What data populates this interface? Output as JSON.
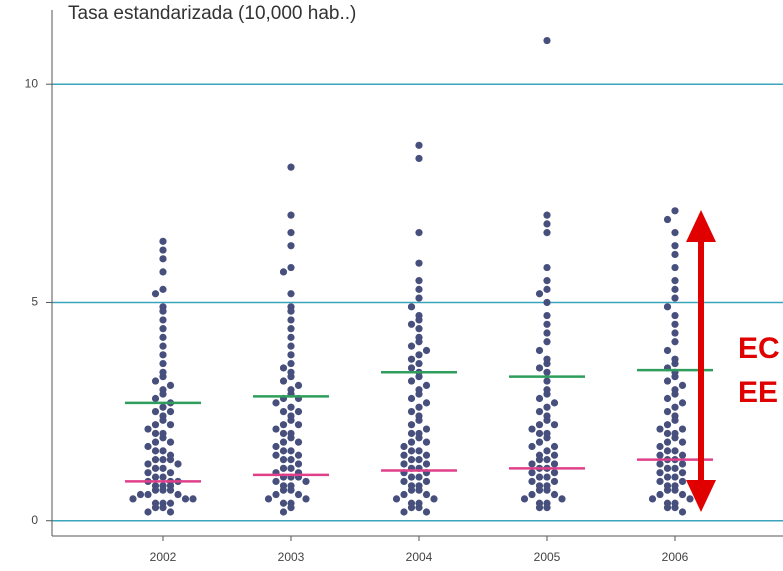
{
  "chart_data": {
    "type": "beeswarm",
    "title": "Tasa estandarizada (10,000 hab..)",
    "categories": [
      "2002",
      "2003",
      "2004",
      "2005",
      "2006"
    ],
    "values": [
      [
        6.4,
        6.2,
        6.0,
        5.7,
        5.3,
        5.2,
        4.9,
        4.8,
        4.6,
        4.4,
        4.2,
        4.0,
        3.8,
        3.6,
        3.4,
        3.3,
        3.2,
        3.1,
        3.0,
        2.9,
        2.8,
        2.7,
        2.6,
        2.5,
        2.5,
        2.4,
        2.3,
        2.2,
        2.2,
        2.1,
        2.0,
        2.0,
        1.9,
        1.8,
        1.8,
        1.7,
        1.6,
        1.6,
        1.5,
        1.4,
        1.4,
        1.4,
        1.3,
        1.3,
        1.2,
        1.2,
        1.1,
        1.1,
        1.0,
        1.0,
        0.9,
        0.9,
        0.9,
        0.8,
        0.8,
        0.8,
        0.7,
        0.7,
        0.7,
        0.6,
        0.6,
        0.6,
        0.5,
        0.5,
        0.5,
        0.4,
        0.4,
        0.4,
        0.3,
        0.3,
        0.2,
        0.2
      ],
      [
        8.1,
        7.0,
        6.6,
        6.3,
        5.8,
        5.7,
        5.2,
        4.9,
        4.8,
        4.6,
        4.4,
        4.2,
        4.0,
        3.8,
        3.6,
        3.5,
        3.4,
        3.3,
        3.2,
        3.1,
        3.0,
        2.9,
        2.8,
        2.8,
        2.7,
        2.6,
        2.5,
        2.5,
        2.4,
        2.3,
        2.2,
        2.2,
        2.1,
        2.0,
        2.0,
        1.9,
        1.8,
        1.8,
        1.7,
        1.6,
        1.6,
        1.5,
        1.5,
        1.4,
        1.4,
        1.3,
        1.2,
        1.2,
        1.1,
        1.1,
        1.0,
        1.0,
        1.0,
        0.9,
        0.9,
        0.8,
        0.8,
        0.7,
        0.7,
        0.6,
        0.6,
        0.5,
        0.5,
        0.4,
        0.4,
        0.3,
        0.2
      ],
      [
        8.6,
        8.3,
        6.6,
        5.9,
        5.5,
        5.3,
        5.1,
        4.9,
        4.7,
        4.6,
        4.5,
        4.4,
        4.2,
        4.1,
        4.0,
        3.9,
        3.8,
        3.7,
        3.6,
        3.5,
        3.4,
        3.3,
        3.2,
        3.1,
        3.0,
        2.9,
        2.8,
        2.7,
        2.6,
        2.5,
        2.4,
        2.3,
        2.2,
        2.1,
        2.0,
        2.0,
        1.9,
        1.8,
        1.8,
        1.7,
        1.6,
        1.6,
        1.5,
        1.5,
        1.4,
        1.4,
        1.3,
        1.3,
        1.2,
        1.2,
        1.1,
        1.1,
        1.0,
        1.0,
        0.9,
        0.9,
        0.8,
        0.8,
        0.7,
        0.7,
        0.6,
        0.6,
        0.5,
        0.5,
        0.4,
        0.4,
        0.3,
        0.3,
        0.2,
        0.2
      ],
      [
        11.0,
        7.0,
        6.8,
        6.6,
        5.8,
        5.5,
        5.3,
        5.2,
        5.0,
        4.7,
        4.5,
        4.3,
        4.1,
        3.9,
        3.7,
        3.6,
        3.5,
        3.4,
        3.2,
        3.0,
        2.9,
        2.8,
        2.7,
        2.6,
        2.5,
        2.4,
        2.3,
        2.2,
        2.2,
        2.1,
        2.0,
        2.0,
        1.9,
        1.8,
        1.7,
        1.7,
        1.6,
        1.5,
        1.5,
        1.4,
        1.4,
        1.3,
        1.3,
        1.2,
        1.2,
        1.1,
        1.1,
        1.0,
        1.0,
        0.9,
        0.9,
        0.8,
        0.8,
        0.7,
        0.7,
        0.6,
        0.6,
        0.5,
        0.5,
        0.4,
        0.4,
        0.3,
        0.3
      ],
      [
        7.1,
        6.9,
        6.6,
        6.3,
        6.1,
        5.8,
        5.5,
        5.3,
        5.1,
        4.9,
        4.7,
        4.5,
        4.3,
        4.1,
        3.9,
        3.7,
        3.6,
        3.5,
        3.4,
        3.3,
        3.2,
        3.1,
        3.0,
        2.9,
        2.8,
        2.7,
        2.6,
        2.5,
        2.4,
        2.3,
        2.2,
        2.1,
        2.1,
        2.0,
        2.0,
        1.9,
        1.8,
        1.8,
        1.7,
        1.6,
        1.6,
        1.5,
        1.5,
        1.4,
        1.4,
        1.3,
        1.3,
        1.2,
        1.2,
        1.1,
        1.1,
        1.0,
        1.0,
        0.9,
        0.9,
        0.8,
        0.8,
        0.7,
        0.7,
        0.6,
        0.6,
        0.5,
        0.5,
        0.4,
        0.4,
        0.3,
        0.3,
        0.2
      ]
    ],
    "color": "#474f7d",
    "reference_lines": [
      {
        "color": "#2f9e5c",
        "values": [
          2.7,
          2.85,
          3.4,
          3.3,
          3.45
        ]
      },
      {
        "color": "#e0408a",
        "values": [
          0.9,
          1.05,
          1.15,
          1.2,
          1.4
        ]
      }
    ],
    "ylim": [
      -0.35,
      11.7
    ],
    "yticks": [
      0,
      5,
      10
    ],
    "grid": true,
    "grid_color": "#3aa6bd",
    "annotation": {
      "lines": [
        "EC",
        "EE"
      ],
      "color": "#e00000"
    }
  }
}
